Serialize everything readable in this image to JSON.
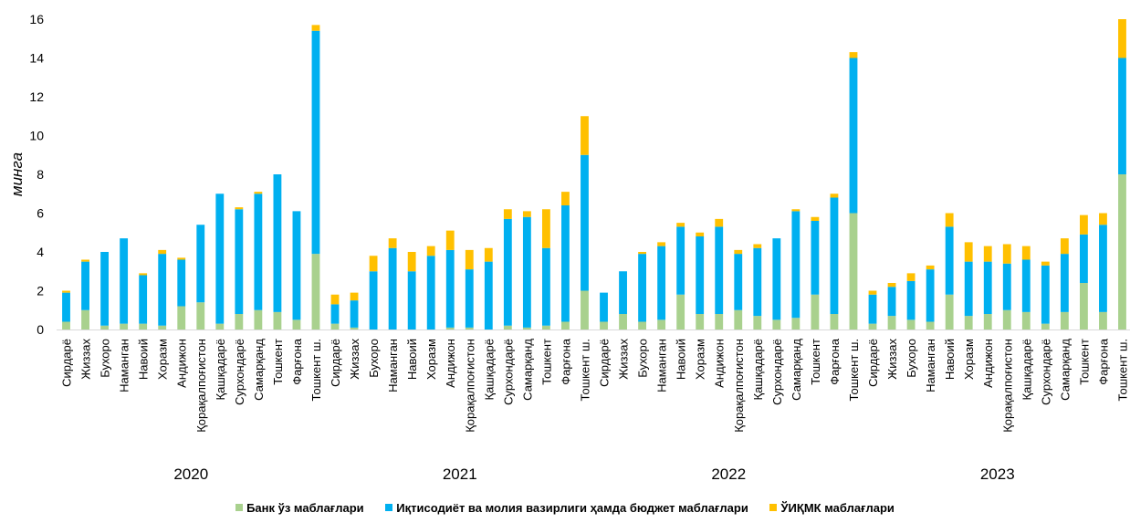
{
  "chart_data": {
    "type": "bar",
    "stacked": true,
    "ylabel": "минга",
    "ylim": [
      0,
      16
    ],
    "yticks": [
      0,
      2,
      4,
      6,
      8,
      10,
      12,
      14,
      16
    ],
    "grid": false,
    "legend_position": "bottom",
    "groups": [
      {
        "label": "2020",
        "categories": [
          "Сирдарё",
          "Жиззах",
          "Бухоро",
          "Наманган",
          "Навоий",
          "Хоразм",
          "Андижон",
          "Қорақалпоғистон",
          "Қашқадарё",
          "Сурхондарё",
          "Самарқанд",
          "Тошкент",
          "Фарғона",
          "Тошкент ш."
        ],
        "series": [
          {
            "values": [
              0.4,
              1.0,
              0.2,
              0.3,
              0.3,
              0.2,
              1.2,
              1.4,
              0.3,
              0.8,
              1.0,
              0.9,
              0.5,
              3.9
            ]
          },
          {
            "values": [
              1.5,
              2.5,
              3.8,
              4.4,
              2.5,
              3.7,
              2.4,
              4.0,
              6.7,
              5.4,
              6.0,
              7.1,
              5.6,
              11.5
            ]
          },
          {
            "values": [
              0.1,
              0.1,
              0.0,
              0.0,
              0.1,
              0.2,
              0.1,
              0.0,
              0.0,
              0.1,
              0.1,
              0.0,
              0.0,
              0.3
            ]
          }
        ]
      },
      {
        "label": "2021",
        "categories": [
          "Сирдарё",
          "Жиззах",
          "Бухоро",
          "Наманган",
          "Навоий",
          "Хоразм",
          "Андижон",
          "Қорақалпоғистон",
          "Қашқадарё",
          "Сурхондарё",
          "Самарқанд",
          "Тошкент",
          "Фарғона",
          "Тошкент ш."
        ],
        "series": [
          {
            "values": [
              0.3,
              0.1,
              0.0,
              0.0,
              0.0,
              0.0,
              0.1,
              0.1,
              0.0,
              0.2,
              0.1,
              0.2,
              0.4,
              2.0
            ]
          },
          {
            "values": [
              1.0,
              1.4,
              3.0,
              4.2,
              3.0,
              3.8,
              4.0,
              3.0,
              3.5,
              5.5,
              5.7,
              4.0,
              6.0,
              7.0
            ]
          },
          {
            "values": [
              0.5,
              0.4,
              0.8,
              0.5,
              1.0,
              0.5,
              1.0,
              1.0,
              0.7,
              0.5,
              0.3,
              2.0,
              0.7,
              2.0
            ]
          }
        ]
      },
      {
        "label": "2022",
        "categories": [
          "Сирдарё",
          "Жиззах",
          "Бухоро",
          "Наманган",
          "Навоий",
          "Хоразм",
          "Андижон",
          "Қорақалпоғистон",
          "Қашқадарё",
          "Сурхондарё",
          "Самарқанд",
          "Тошкент",
          "Фарғона",
          "Тошкент ш."
        ],
        "series": [
          {
            "values": [
              0.4,
              0.8,
              0.4,
              0.5,
              1.8,
              0.8,
              0.8,
              1.0,
              0.7,
              0.5,
              0.6,
              1.8,
              0.8,
              6.0
            ]
          },
          {
            "values": [
              1.5,
              2.2,
              3.5,
              3.8,
              3.5,
              4.0,
              4.5,
              2.9,
              3.5,
              4.2,
              5.5,
              3.8,
              6.0,
              8.0
            ]
          },
          {
            "values": [
              0.0,
              0.0,
              0.1,
              0.2,
              0.2,
              0.2,
              0.4,
              0.2,
              0.2,
              0.0,
              0.1,
              0.2,
              0.2,
              0.3
            ]
          }
        ]
      },
      {
        "label": "2023",
        "categories": [
          "Сирдарё",
          "Жиззах",
          "Бухоро",
          "Наманган",
          "Навоий",
          "Хоразм",
          "Андижон",
          "Қорақалпоғистон",
          "Қашқадарё",
          "Сурхондарё",
          "Самарқанд",
          "Тошкент",
          "Фарғона",
          "Тошкент ш."
        ],
        "series": [
          {
            "values": [
              0.3,
              0.7,
              0.5,
              0.4,
              1.8,
              0.7,
              0.8,
              1.0,
              0.9,
              0.3,
              0.9,
              2.4,
              0.9,
              8.0
            ]
          },
          {
            "values": [
              1.5,
              1.5,
              2.0,
              2.7,
              3.5,
              2.8,
              2.7,
              2.4,
              2.7,
              3.0,
              3.0,
              2.5,
              4.5,
              6.0
            ]
          },
          {
            "values": [
              0.2,
              0.2,
              0.4,
              0.2,
              0.7,
              1.0,
              0.8,
              1.0,
              0.7,
              0.2,
              0.8,
              1.0,
              0.6,
              2.0
            ]
          }
        ]
      }
    ],
    "legend": [
      {
        "name": "Банк ўз маблағлари",
        "color": "#a9d18e"
      },
      {
        "name": "Иқтисодиёт ва молия вазирлиги ҳамда бюджет маблағлари",
        "color": "#00b0f0"
      },
      {
        "name": "ЎИҚМК маблағлари",
        "color": "#ffc000"
      }
    ]
  }
}
